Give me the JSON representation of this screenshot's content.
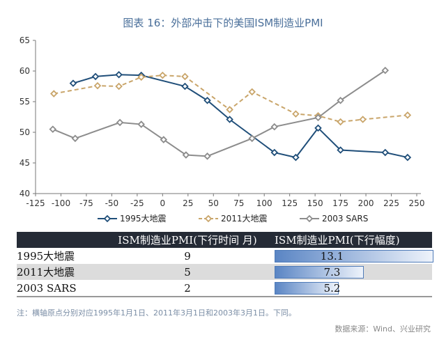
{
  "title": "图表 16：外部冲击下的美国ISM制造业PMI",
  "chart_data": {
    "type": "line",
    "title": "图表 16：外部冲击下的美国ISM制造业PMI",
    "xlim": [
      -125,
      250
    ],
    "ylim": [
      40,
      65
    ],
    "xticks": [
      -125,
      -100,
      -75,
      -50,
      -25,
      0,
      25,
      50,
      75,
      100,
      125,
      150,
      175,
      200,
      225,
      250
    ],
    "yticks": [
      40,
      45,
      50,
      55,
      60,
      65
    ],
    "grid": false,
    "legend": "bottom",
    "series": [
      {
        "name": "1995大地震",
        "color": "#1f4e79",
        "dash": false,
        "points": [
          [
            -88,
            58.0
          ],
          [
            -66,
            59.1
          ],
          [
            -43,
            59.4
          ],
          [
            -21,
            59.3
          ],
          [
            22,
            57.5
          ],
          [
            44,
            55.2
          ],
          [
            66,
            52.1
          ],
          [
            110,
            46.7
          ],
          [
            131,
            45.9
          ],
          [
            153,
            50.7
          ],
          [
            175,
            47.1
          ],
          [
            219,
            46.7
          ],
          [
            241,
            45.9
          ]
        ]
      },
      {
        "name": "2011大地震",
        "color": "#c9a56a",
        "dash": true,
        "points": [
          [
            -107,
            56.3
          ],
          [
            -64,
            57.6
          ],
          [
            -43,
            57.5
          ],
          [
            -21,
            59.0
          ],
          [
            0,
            59.3
          ],
          [
            22,
            59.1
          ],
          [
            66,
            53.7
          ],
          [
            88,
            56.6
          ],
          [
            131,
            53.0
          ],
          [
            153,
            52.7
          ],
          [
            175,
            51.7
          ],
          [
            197,
            52.1
          ],
          [
            241,
            52.8
          ]
        ]
      },
      {
        "name": "2003 SARS",
        "color": "#8c8c8c",
        "dash": false,
        "points": [
          [
            -108,
            50.5
          ],
          [
            -86,
            49.0
          ],
          [
            -42,
            51.6
          ],
          [
            -21,
            51.3
          ],
          [
            1,
            48.8
          ],
          [
            23,
            46.3
          ],
          [
            44,
            46.1
          ],
          [
            88,
            49.0
          ],
          [
            110,
            50.9
          ],
          [
            153,
            52.4
          ],
          [
            175,
            55.2
          ],
          [
            219,
            60.1
          ]
        ]
      }
    ]
  },
  "table": {
    "headers": [
      "",
      "ISM制造业PMI(下行时间 月)",
      "ISM制造业PMI(下行幅度)"
    ],
    "rows": [
      {
        "label": "1995大地震",
        "months": "9",
        "drop": "13.1",
        "drop_value": 13.1
      },
      {
        "label": "2011大地震",
        "months": "5",
        "drop": "7.3",
        "drop_value": 7.3
      },
      {
        "label": "2003 SARS",
        "months": "2",
        "drop": "5.2",
        "drop_value": 5.2
      }
    ]
  },
  "note": "注：横轴原点分别对应1995年1月1日、2011年3月1日和2003年3月1日。下同。",
  "source": "数据来源：Wind、兴业研究"
}
